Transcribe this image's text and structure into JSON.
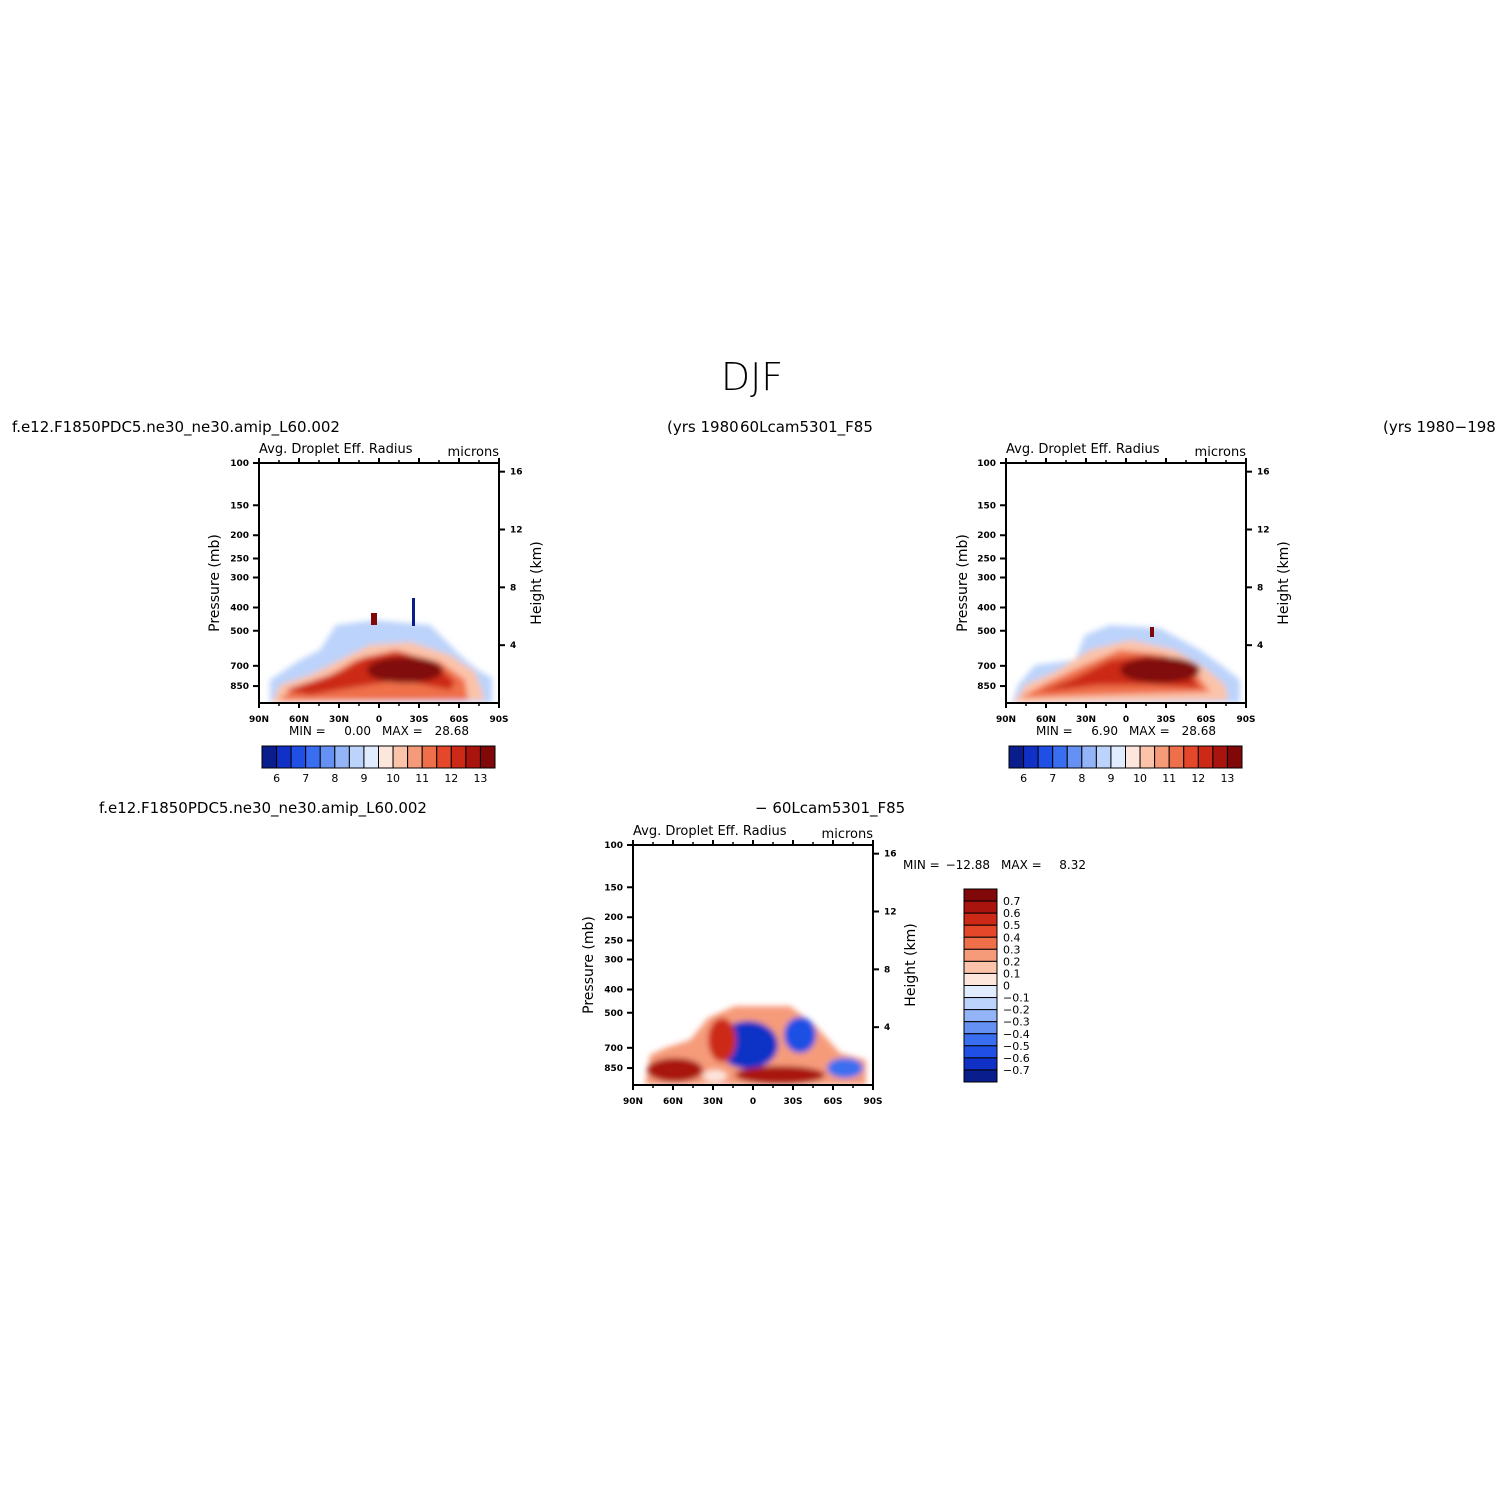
{
  "page": {
    "title": "DJF"
  },
  "captions": {
    "test_case": "f.e12.F1850PDC5.ne30_ne30.amip_L60.002",
    "test_years": "(yrs 1980",
    "ctrl_case": "60Lcam5301_F85",
    "ctrl_years": "(yrs 1980−198",
    "diff_case_left": "f.e12.F1850PDC5.ne30_ne30.amip_L60.002",
    "diff_case_right": "− 60Lcam5301_F85"
  },
  "chart_data": [
    {
      "id": "test",
      "type": "heatmap",
      "title": "Avg. Droplet Eff. Radius",
      "units": "microns",
      "xlabel": "",
      "ylabel": "Pressure (mb)",
      "y2label": "Height (km)",
      "x_ticks": [
        "90N",
        "60N",
        "30N",
        "0",
        "30S",
        "60S",
        "90S"
      ],
      "y_ticks": [
        100,
        150,
        200,
        250,
        300,
        400,
        500,
        700,
        850
      ],
      "y2_ticks": [
        16,
        12,
        8,
        4
      ],
      "ylim": [
        100,
        1000
      ],
      "min_label": "MIN =",
      "min": "0.00",
      "max_label": "MAX =",
      "max": "28.68",
      "colorbar": {
        "orientation": "horizontal",
        "levels": [
          "6",
          "7",
          "8",
          "9",
          "10",
          "11",
          "12",
          "13"
        ],
        "colors": [
          "#0a1d8c",
          "#1030c6",
          "#1f4fe4",
          "#3a6ef0",
          "#6691f4",
          "#93b5f8",
          "#bcd3fb",
          "#e1edfe",
          "#fde6dc",
          "#fbc3a9",
          "#f69b7a",
          "#ef6f4a",
          "#e4472a",
          "#cc2a17",
          "#a9150e",
          "#810808"
        ]
      }
    },
    {
      "id": "control",
      "type": "heatmap",
      "title": "Avg. Droplet Eff. Radius",
      "units": "microns",
      "xlabel": "",
      "ylabel": "Pressure (mb)",
      "y2label": "Height (km)",
      "x_ticks": [
        "90N",
        "60N",
        "30N",
        "0",
        "30S",
        "60S",
        "90S"
      ],
      "y_ticks": [
        100,
        150,
        200,
        250,
        300,
        400,
        500,
        700,
        850
      ],
      "y2_ticks": [
        16,
        12,
        8,
        4
      ],
      "ylim": [
        100,
        1000
      ],
      "min_label": "MIN =",
      "min": "6.90",
      "max_label": "MAX =",
      "max": "28.68",
      "colorbar": {
        "orientation": "horizontal",
        "levels": [
          "6",
          "7",
          "8",
          "9",
          "10",
          "11",
          "12",
          "13"
        ],
        "colors": [
          "#0a1d8c",
          "#1030c6",
          "#1f4fe4",
          "#3a6ef0",
          "#6691f4",
          "#93b5f8",
          "#bcd3fb",
          "#e1edfe",
          "#fde6dc",
          "#fbc3a9",
          "#f69b7a",
          "#ef6f4a",
          "#e4472a",
          "#cc2a17",
          "#a9150e",
          "#810808"
        ]
      }
    },
    {
      "id": "difference",
      "type": "heatmap",
      "title": "Avg. Droplet Eff. Radius",
      "units": "microns",
      "xlabel": "",
      "ylabel": "Pressure (mb)",
      "y2label": "Height (km)",
      "x_ticks": [
        "90N",
        "60N",
        "30N",
        "0",
        "30S",
        "60S",
        "90S"
      ],
      "y_ticks": [
        100,
        150,
        200,
        250,
        300,
        400,
        500,
        700,
        850
      ],
      "y2_ticks": [
        16,
        12,
        8,
        4
      ],
      "ylim": [
        100,
        1000
      ],
      "min_label": "MIN =",
      "min": "−12.88",
      "max_label": "MAX =",
      "max": "8.32",
      "colorbar": {
        "orientation": "vertical",
        "levels": [
          "0.7",
          "0.6",
          "0.5",
          "0.4",
          "0.3",
          "0.2",
          "0.1",
          "0",
          "−0.1",
          "−0.2",
          "−0.3",
          "−0.4",
          "−0.5",
          "−0.6",
          "−0.7"
        ],
        "colors": [
          "#810808",
          "#a9150e",
          "#cc2a17",
          "#e4472a",
          "#ef6f4a",
          "#f69b7a",
          "#fbc3a9",
          "#fde6dc",
          "#e1edfe",
          "#bcd3fb",
          "#93b5f8",
          "#6691f4",
          "#3a6ef0",
          "#1f4fe4",
          "#1030c6",
          "#0a1d8c"
        ]
      }
    }
  ]
}
